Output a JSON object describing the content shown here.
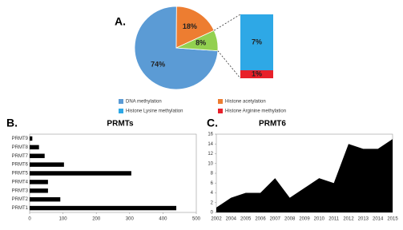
{
  "chart_data": [
    {
      "type": "pie",
      "label": "A.",
      "categories": [
        "DNA methylation",
        "Histone acetylation",
        null
      ],
      "values": [
        74,
        18,
        8
      ],
      "value_labels": [
        "74%",
        "18%",
        "8%"
      ],
      "colors": [
        "#5b9bd5",
        "#ed7d31",
        "#92d050"
      ]
    },
    {
      "type": "bar",
      "stacked": true,
      "series": [
        {
          "name": "Histone Lysine methylation",
          "color": "#2ea8e6",
          "values": [
            7
          ],
          "value_labels": [
            "7%"
          ]
        },
        {
          "name": "Histone Arginine methylation",
          "color": "#e8202a",
          "values": [
            1
          ],
          "value_labels": [
            "1%"
          ]
        }
      ]
    },
    {
      "type": "bar",
      "orientation": "horizontal",
      "label": "B.",
      "title": "PRMTs",
      "color": "#000000",
      "categories": [
        "PRMT1",
        "PRMT2",
        "PRMT3",
        "PRMT4",
        "PRMT5",
        "PRMT6",
        "PRMT7",
        "PRMT8",
        "PRMT9"
      ],
      "values": [
        440,
        92,
        55,
        55,
        305,
        103,
        45,
        28,
        8
      ],
      "xlim": [
        0,
        500
      ],
      "xticks": [
        0,
        100,
        200,
        300,
        400,
        500
      ]
    },
    {
      "type": "area",
      "label": "C.",
      "title": "PRMT6",
      "color": "#000000",
      "categories": [
        "2002",
        "2004",
        "2005",
        "2006",
        "2007",
        "2008",
        "2009",
        "2010",
        "2011",
        "2012",
        "2013",
        "2014",
        "2015"
      ],
      "values": [
        1,
        3,
        4,
        4,
        7,
        3,
        5,
        7,
        6,
        14,
        13,
        13,
        15
      ],
      "ylim": [
        0,
        16
      ],
      "yticks": [
        0,
        2,
        4,
        6,
        8,
        10,
        12,
        14,
        16
      ]
    }
  ]
}
